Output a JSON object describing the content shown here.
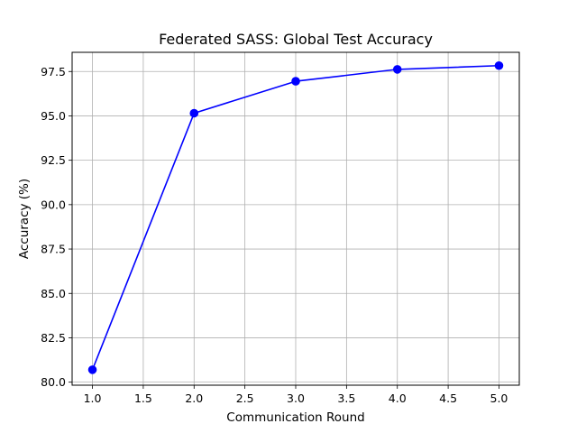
{
  "chart_data": {
    "type": "line",
    "title": "Federated SASS: Global Test Accuracy",
    "xlabel": "Communication Round",
    "ylabel": "Accuracy (%)",
    "x": [
      1,
      2,
      3,
      4,
      5
    ],
    "series": [
      {
        "name": "Global Test Accuracy",
        "values": [
          80.7,
          95.15,
          96.95,
          97.62,
          97.83
        ],
        "color": "#0000ff",
        "marker": "circle"
      }
    ],
    "xlim": [
      0.8,
      5.2
    ],
    "ylim": [
      79.83,
      98.58
    ],
    "x_ticks": [
      1.0,
      1.5,
      2.0,
      2.5,
      3.0,
      3.5,
      4.0,
      4.5,
      5.0
    ],
    "x_tick_labels": [
      "1.0",
      "1.5",
      "2.0",
      "2.5",
      "3.0",
      "3.5",
      "4.0",
      "4.5",
      "5.0"
    ],
    "y_ticks": [
      80.0,
      82.5,
      85.0,
      87.5,
      90.0,
      92.5,
      95.0,
      97.5
    ],
    "y_tick_labels": [
      "80.0",
      "82.5",
      "85.0",
      "87.5",
      "90.0",
      "92.5",
      "95.0",
      "97.5"
    ],
    "grid": true,
    "grid_color": "#b0b0b0"
  }
}
